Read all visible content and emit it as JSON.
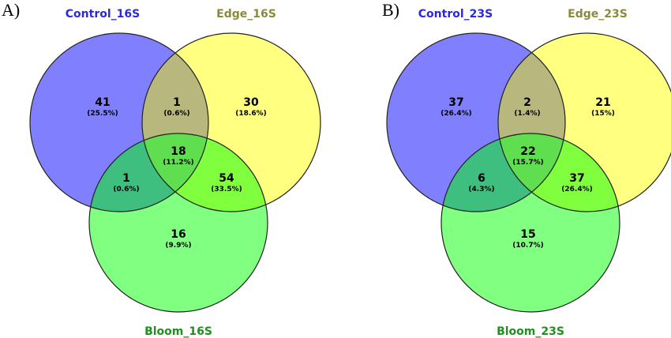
{
  "colors": {
    "control": "#8080ff",
    "edge": "#ffff80",
    "bloom": "#80ff80",
    "control_label": "#2a2adb",
    "edge_label": "#8a8a3a",
    "bloom_label": "#1f8f1f"
  },
  "panels": [
    {
      "label": "A)",
      "sets": {
        "control": "Control_16S",
        "edge": "Edge_16S",
        "bloom": "Bloom_16S"
      },
      "regions": {
        "control_only": {
          "count": "41",
          "pct": "(25.5%)"
        },
        "control_edge": {
          "count": "1",
          "pct": "(0.6%)"
        },
        "edge_only": {
          "count": "30",
          "pct": "(18.6%)"
        },
        "all_three": {
          "count": "18",
          "pct": "(11.2%)"
        },
        "control_bloom": {
          "count": "1",
          "pct": "(0.6%)"
        },
        "edge_bloom": {
          "count": "54",
          "pct": "(33.5%)"
        },
        "bloom_only": {
          "count": "16",
          "pct": "(9.9%)"
        }
      }
    },
    {
      "label": "B)",
      "sets": {
        "control": "Control_23S",
        "edge": "Edge_23S",
        "bloom": "Bloom_23S"
      },
      "regions": {
        "control_only": {
          "count": "37",
          "pct": "(26.4%)"
        },
        "control_edge": {
          "count": "2",
          "pct": "(1.4%)"
        },
        "edge_only": {
          "count": "21",
          "pct": "(15%)"
        },
        "all_three": {
          "count": "22",
          "pct": "(15.7%)"
        },
        "control_bloom": {
          "count": "6",
          "pct": "(4.3%)"
        },
        "edge_bloom": {
          "count": "37",
          "pct": "(26.4%)"
        },
        "bloom_only": {
          "count": "15",
          "pct": "(10.7%)"
        }
      }
    }
  ]
}
